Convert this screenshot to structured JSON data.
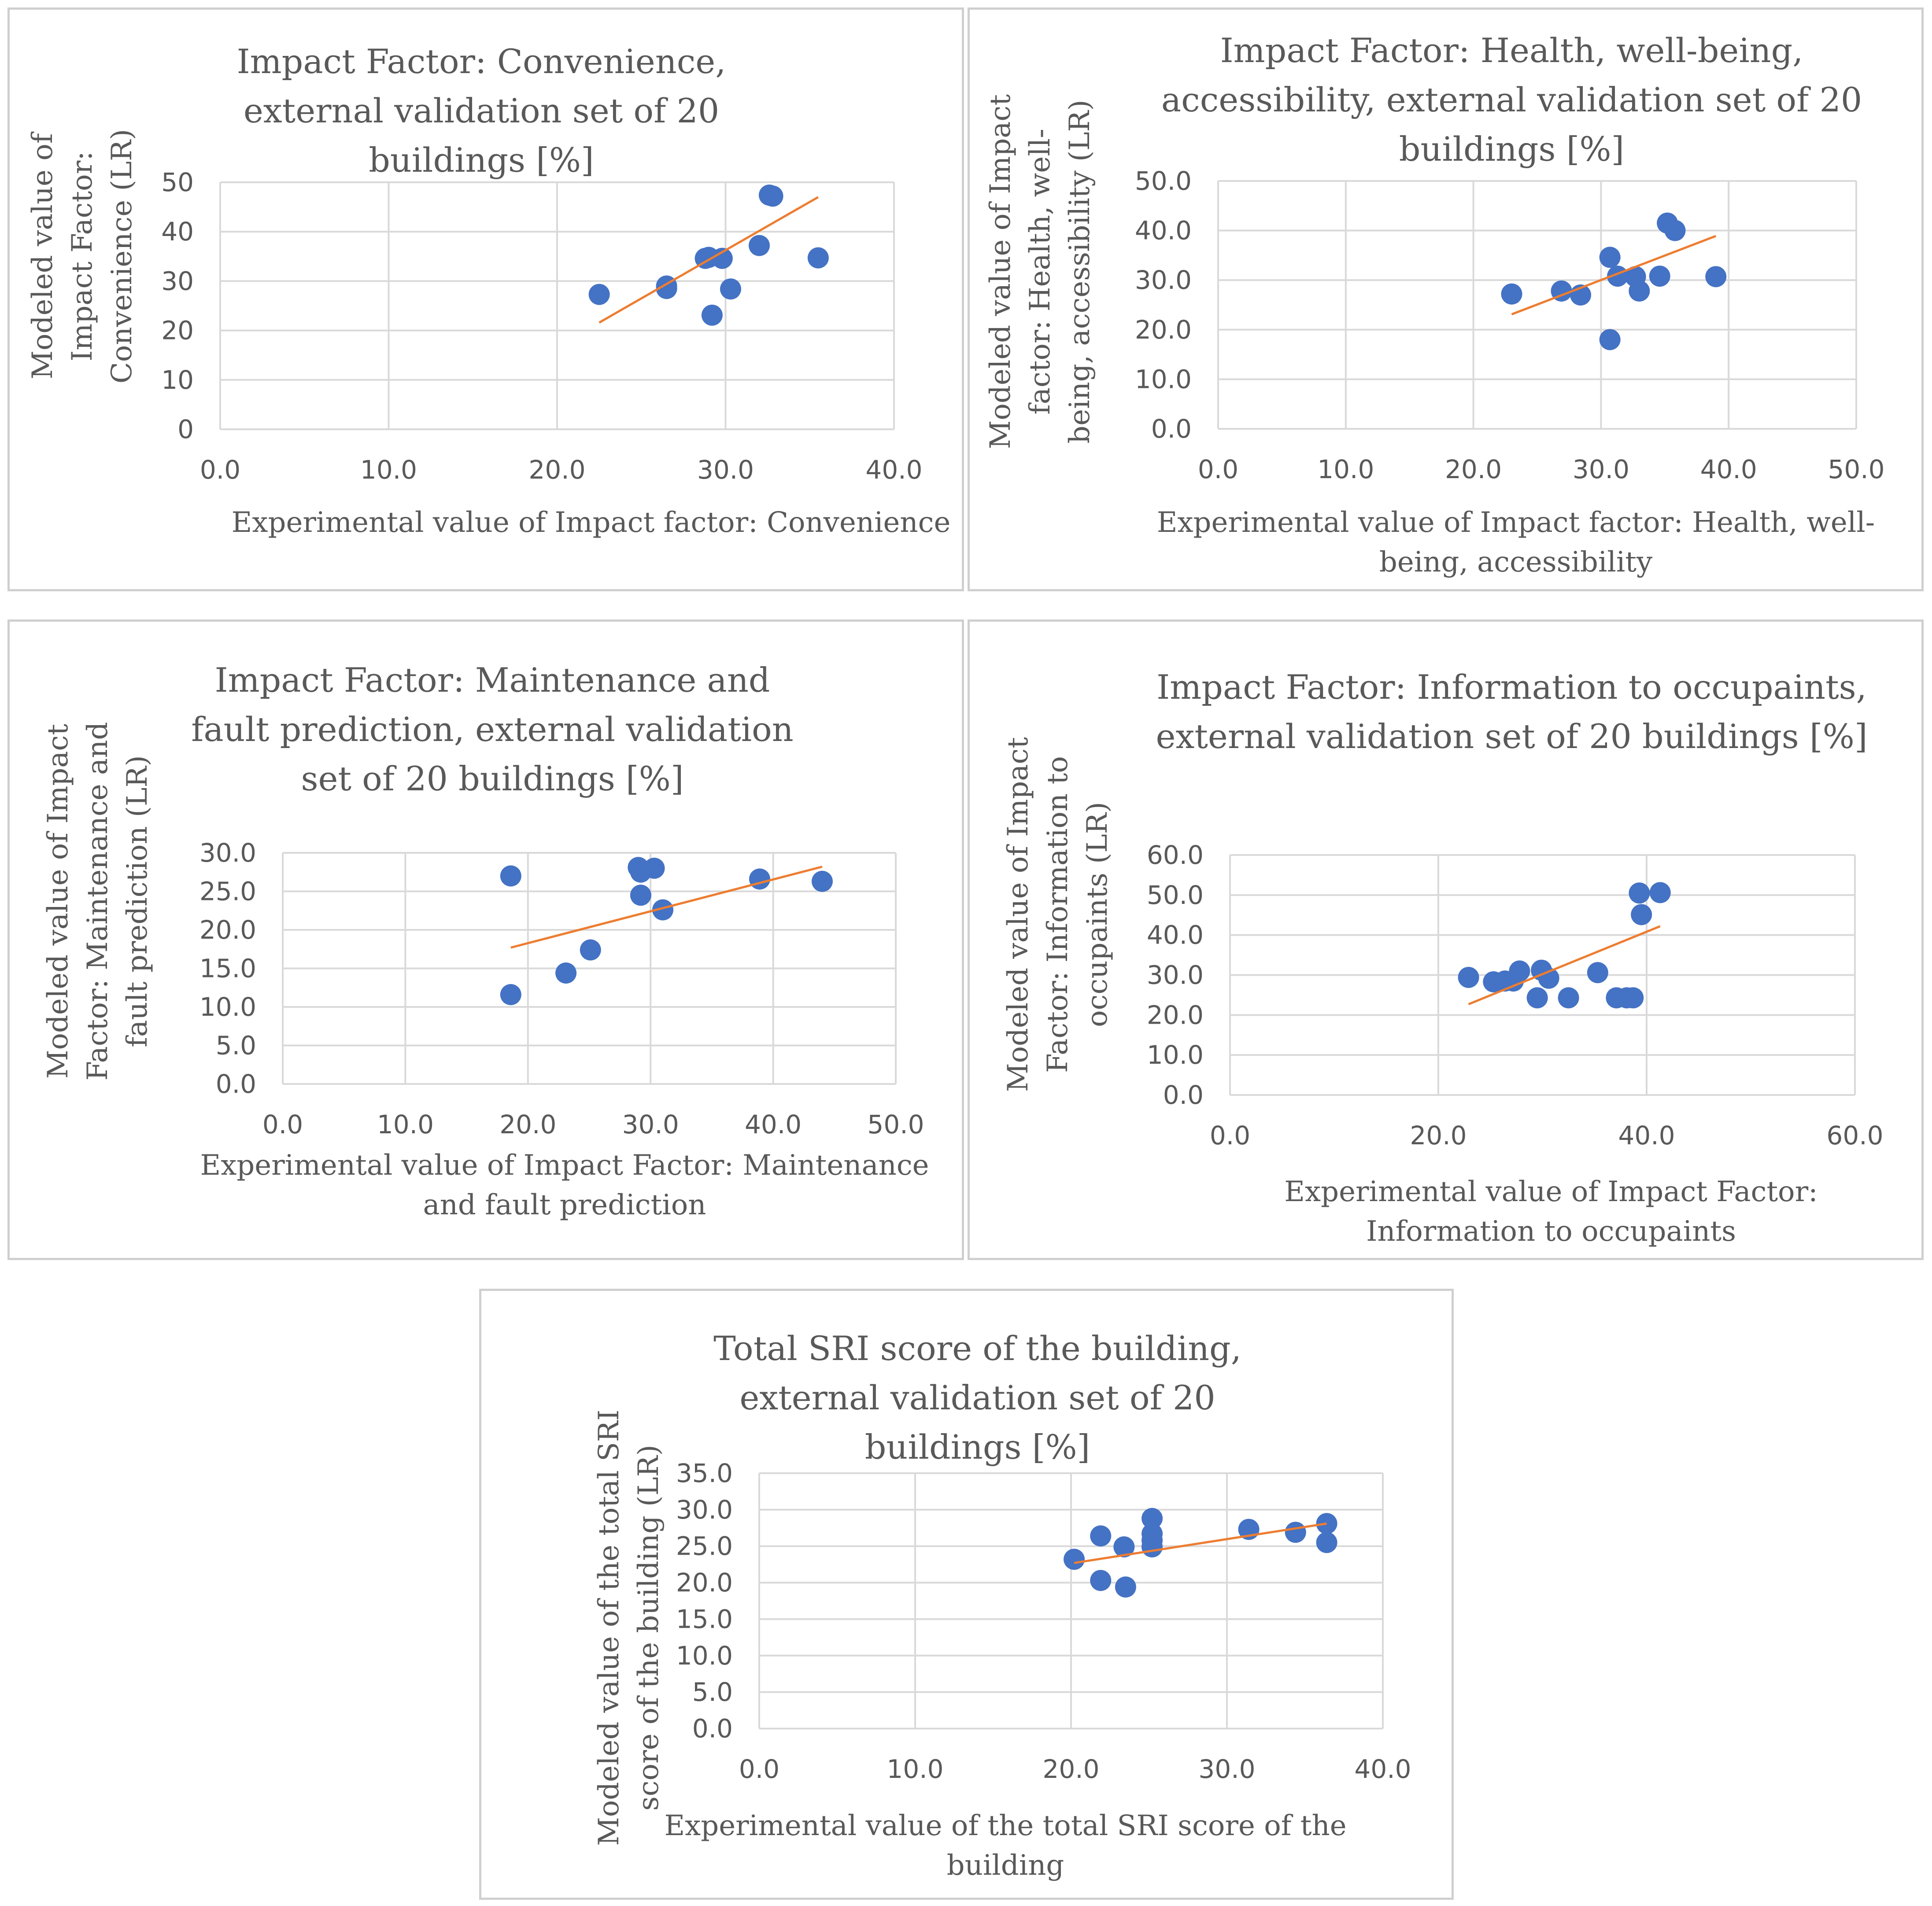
{
  "colors": {
    "marker": "#4472c4",
    "trendline": "#ed7d31",
    "grid": "#d9d9d9",
    "axis_text": "#595959",
    "border": "#cfcfcf"
  },
  "chart_data": [
    {
      "type": "scatter",
      "title": "Impact Factor: Convenience, external validation set of 20 buildings [%]",
      "xlabel": "Experimental value of Impact factor: Convenience",
      "ylabel": "Modeled value of Impact Factor: Convenience (LR)",
      "xlim": [
        0,
        40
      ],
      "ylim": [
        0,
        50
      ],
      "xticks": [
        "0.0",
        "10.0",
        "20.0",
        "30.0",
        "40.0"
      ],
      "yticks": [
        "0",
        "10",
        "20",
        "30",
        "40",
        "50"
      ],
      "x": [
        22.5,
        26.5,
        26.5,
        28.8,
        29.0,
        29.8,
        30.3,
        29.2,
        32.0,
        32.6,
        32.8,
        35.5
      ],
      "y": [
        27.3,
        28.5,
        29.0,
        34.6,
        34.8,
        34.6,
        28.4,
        23.1,
        37.2,
        47.4,
        47.2,
        34.7
      ],
      "trendline": {
        "x": [
          22.5,
          35.5
        ],
        "y": [
          21.6,
          47.0
        ]
      }
    },
    {
      "type": "scatter",
      "title": "Impact Factor: Health, well-being, accessibility, external validation set of 20 buildings [%]",
      "xlabel": "Experimental value of Impact factor: Health, well-being, accessibility",
      "ylabel": "Modeled value of Impact factor: Health, well-being, accessibility (LR)",
      "xlim": [
        0,
        50
      ],
      "ylim": [
        0,
        50
      ],
      "xticks": [
        "0.0",
        "10.0",
        "20.0",
        "30.0",
        "40.0",
        "50.0"
      ],
      "yticks": [
        "0.0",
        "10.0",
        "20.0",
        "30.0",
        "40.0",
        "50.0"
      ],
      "x": [
        23.0,
        26.9,
        28.4,
        30.7,
        31.3,
        32.7,
        33.0,
        34.6,
        35.2,
        35.8,
        39.0,
        30.7
      ],
      "y": [
        27.2,
        27.8,
        27.0,
        34.6,
        30.8,
        30.7,
        27.8,
        30.8,
        41.5,
        40.0,
        30.7,
        18.0
      ],
      "trendline": {
        "x": [
          23.0,
          39.0
        ],
        "y": [
          23.1,
          38.9
        ]
      }
    },
    {
      "type": "scatter",
      "title": "Impact Factor: Maintenance and fault prediction, external validation set of 20 buildings [%]",
      "xlabel": "Experimental value of Impact Factor: Maintenance and fault prediction",
      "ylabel": "Modeled value of Impact Factor: Maintenance and fault prediction (LR)",
      "xlim": [
        0,
        50
      ],
      "ylim": [
        0,
        30
      ],
      "xticks": [
        "0.0",
        "10.0",
        "20.0",
        "30.0",
        "40.0",
        "50.0"
      ],
      "yticks": [
        "0.0",
        "5.0",
        "10.0",
        "15.0",
        "20.0",
        "25.0",
        "30.0"
      ],
      "x": [
        18.6,
        18.6,
        23.1,
        25.1,
        29.0,
        29.2,
        29.2,
        30.3,
        31.0,
        38.9,
        44.0
      ],
      "y": [
        27.0,
        11.6,
        14.4,
        17.4,
        28.1,
        27.5,
        24.5,
        28.0,
        22.6,
        26.6,
        26.3
      ],
      "trendline": {
        "x": [
          18.6,
          44.0
        ],
        "y": [
          17.7,
          28.2
        ]
      }
    },
    {
      "type": "scatter",
      "title": "Impact Factor: Information to occupaints, external validation set of 20 buildings [%]",
      "xlabel": "Experimental value of Impact Factor: Information to occupaints",
      "ylabel": "Modeled value of Impact Factor: Information to occupaints (LR)",
      "xlim": [
        0,
        60
      ],
      "ylim": [
        0,
        60
      ],
      "xticks": [
        "0.0",
        "20.0",
        "40.0",
        "60.0"
      ],
      "yticks": [
        "0.0",
        "10.0",
        "20.0",
        "30.0",
        "40.0",
        "50.0",
        "60.0"
      ],
      "x": [
        22.9,
        25.3,
        26.4,
        27.2,
        27.8,
        29.5,
        29.9,
        30.6,
        32.5,
        35.3,
        37.1,
        38.1,
        38.7,
        39.3,
        39.5,
        41.3
      ],
      "y": [
        29.4,
        28.3,
        28.5,
        28.5,
        31.0,
        24.3,
        31.2,
        29.2,
        24.3,
        30.6,
        24.3,
        24.3,
        24.3,
        50.5,
        45.1,
        50.6
      ],
      "trendline": {
        "x": [
          22.9,
          41.3
        ],
        "y": [
          22.7,
          42.2
        ]
      }
    },
    {
      "type": "scatter",
      "title": "Total SRI score of the building, external validation set of 20 buildings [%]",
      "xlabel": "Experimental value of the total SRI score of the building",
      "ylabel": "Modeled value of the total SRI score of the building (LR)",
      "xlim": [
        0,
        40
      ],
      "ylim": [
        0,
        35
      ],
      "xticks": [
        "0.0",
        "10.0",
        "20.0",
        "30.0",
        "40.0"
      ],
      "yticks": [
        "0.0",
        "5.0",
        "10.0",
        "15.0",
        "20.0",
        "25.0",
        "30.0",
        "35.0"
      ],
      "x": [
        20.2,
        21.9,
        21.9,
        23.4,
        23.5,
        25.2,
        25.2,
        25.2,
        25.2,
        31.4,
        34.4,
        36.4,
        36.4
      ],
      "y": [
        23.2,
        26.4,
        20.3,
        24.9,
        19.4,
        28.8,
        26.7,
        25.8,
        24.9,
        27.3,
        26.9,
        28.1,
        25.5
      ],
      "trendline": {
        "x": [
          20.2,
          36.4
        ],
        "y": [
          22.7,
          28.1
        ]
      }
    }
  ]
}
